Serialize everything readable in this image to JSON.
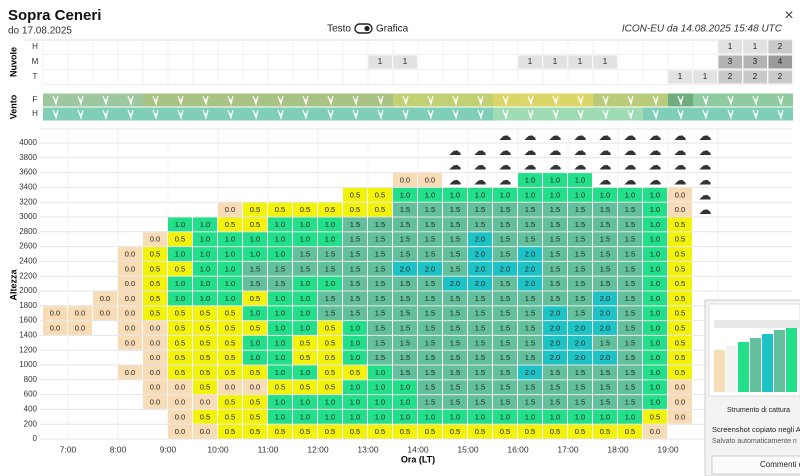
{
  "header": {
    "title": "Sopra Ceneri",
    "subtitle": "do 17.08.2025",
    "toggle_left": "Testo",
    "toggle_right": "Grafica",
    "model": "ICON-EU da 14.08.2025 15:48 UTC",
    "close": "×"
  },
  "clouds": {
    "label": "Nuvole",
    "colors": {
      "1": "#e2e2e2",
      "2": "#c9c9c9",
      "3": "#b4b4b4",
      "4": "#9a9a9a"
    },
    "rows": [
      {
        "name": "H",
        "cells": [
          null,
          null,
          null,
          null,
          null,
          null,
          null,
          null,
          null,
          null,
          null,
          null,
          null,
          null,
          null,
          null,
          null,
          null,
          null,
          null,
          null,
          null,
          null,
          null,
          null,
          null,
          null,
          1,
          1,
          2
        ]
      },
      {
        "name": "M",
        "cells": [
          null,
          null,
          null,
          null,
          null,
          null,
          null,
          null,
          null,
          null,
          null,
          null,
          null,
          1,
          1,
          null,
          null,
          null,
          null,
          1,
          1,
          1,
          1,
          null,
          null,
          null,
          null,
          3,
          3,
          4
        ]
      },
      {
        "name": "T",
        "cells": [
          null,
          null,
          null,
          null,
          null,
          null,
          null,
          null,
          null,
          null,
          null,
          null,
          null,
          null,
          null,
          null,
          null,
          null,
          null,
          null,
          null,
          null,
          null,
          null,
          null,
          1,
          1,
          2,
          2,
          2
        ]
      }
    ]
  },
  "wind": {
    "label": "Vento",
    "rows": [
      {
        "name": "F",
        "colors": [
          "#9dc79f",
          "#9dc79f",
          "#9dc79f",
          "#9dc79f",
          "#a8c383",
          "#a8c383",
          "#a8c383",
          "#a8c383",
          "#a8c383",
          "#a8c383",
          "#a8c383",
          "#a8c383",
          "#a8c383",
          "#a8c383",
          "#c2cf72",
          "#c2cf72",
          "#c2cf72",
          "#c2cf72",
          "#dcd668",
          "#dcd668",
          "#dcd668",
          "#dcd668",
          "#b8cb78",
          "#b8cb78",
          "#b8cb78",
          "#6fae7c",
          "#8fcaa0",
          "#8fcaa0",
          "#8fcaa0",
          "#8fcaa0"
        ]
      },
      {
        "name": "H",
        "colors": [
          "#7fcfb8",
          "#7fcfb8",
          "#7fcfb8",
          "#7fcfb8",
          "#7fcfb8",
          "#7fcfb8",
          "#7fcfb8",
          "#7fcfb8",
          "#7fcfb8",
          "#7fcfb8",
          "#7fcfb8",
          "#7fcfb8",
          "#7fcfb8",
          "#7fcfb8",
          "#7fcfb8",
          "#7fcfb8",
          "#7fcfb8",
          "#7fcfb8",
          "#9fdcb4",
          "#9fdcb4",
          "#9fdcb4",
          "#9fdcb4",
          "#9fdcb4",
          "#9fdcb4",
          "#7fcfb8",
          "#7fcfb8",
          "#7fcfb8",
          "#7fcfb8",
          "#7fcfb8",
          "#7fcfb8"
        ]
      }
    ]
  },
  "grid": {
    "label": "Altezza",
    "xlabel": "Ora (LT)",
    "yticks": [
      0,
      200,
      400,
      600,
      800,
      1000,
      1200,
      1400,
      1600,
      1800,
      2000,
      2200,
      2400,
      2600,
      2800,
      3000,
      3200,
      3400,
      3600,
      3800,
      4000
    ],
    "times": [
      "7:00",
      "8:00",
      "9:00",
      "10:00",
      "11:00",
      "12:00",
      "13:00",
      "14:00",
      "15:00",
      "16:00",
      "17:00",
      "18:00",
      "19:00"
    ],
    "colors": {
      "0.0": "#f8dcb6",
      "0.5": "#f2f20a",
      "1.0": "#22df8a",
      "1.5": "#62c09c",
      "2.0": "#1ec3c6"
    },
    "rows": [
      [
        null,
        null,
        null,
        null,
        null,
        null,
        null,
        null,
        null,
        null,
        null,
        null,
        null,
        null,
        null,
        null,
        null,
        null,
        "☁",
        "☁",
        "☁",
        "☁",
        "☁",
        "☁",
        "☁",
        "☁",
        "☁"
      ],
      [
        null,
        null,
        null,
        null,
        null,
        null,
        null,
        null,
        null,
        null,
        null,
        null,
        null,
        null,
        null,
        null,
        "☁",
        "☁",
        "☁",
        "☁",
        "☁",
        "☁",
        "☁",
        "☁",
        "☁",
        "☁",
        "☁"
      ],
      [
        null,
        null,
        null,
        null,
        null,
        null,
        null,
        null,
        null,
        null,
        null,
        null,
        null,
        null,
        null,
        null,
        "☁",
        "☁",
        "☁",
        "☁",
        "☁",
        "☁",
        "☁",
        "☁",
        "☁",
        "☁",
        "☁"
      ],
      [
        null,
        null,
        null,
        null,
        null,
        null,
        null,
        null,
        null,
        null,
        null,
        null,
        null,
        null,
        "0.0",
        "0.0",
        "☁",
        "☁",
        "☁",
        "1.0",
        "1.0",
        "1.0",
        "☁",
        "☁",
        "☁",
        "☁",
        "☁"
      ],
      [
        null,
        null,
        null,
        null,
        null,
        null,
        null,
        null,
        null,
        null,
        null,
        null,
        "0.5",
        "0.5",
        "1.0",
        "1.0",
        "1.0",
        "1.0",
        "1.0",
        "1.0",
        "1.0",
        "1.0",
        "1.0",
        "1.0",
        "1.0",
        "0.0",
        "☁"
      ],
      [
        null,
        null,
        null,
        null,
        null,
        null,
        null,
        "0.0",
        "0.5",
        "0.5",
        "0.5",
        "0.5",
        "0.5",
        "0.5",
        "1.5",
        "1.5",
        "1.5",
        "1.5",
        "1.5",
        "1.5",
        "1.5",
        "1.5",
        "1.5",
        "1.5",
        "1.0",
        "0.0",
        "☁"
      ],
      [
        null,
        null,
        null,
        null,
        null,
        "1.0",
        "1.0",
        "0.5",
        "0.5",
        "1.0",
        "1.0",
        "1.0",
        "1.5",
        "1.5",
        "1.5",
        "1.5",
        "1.5",
        "1.5",
        "1.5",
        "1.5",
        "1.5",
        "1.5",
        "1.5",
        "1.5",
        "1.0",
        "0.5",
        null
      ],
      [
        null,
        null,
        null,
        null,
        "0.0",
        "0.5",
        "1.0",
        "1.0",
        "1.0",
        "1.0",
        "1.0",
        "1.0",
        "1.5",
        "1.5",
        "1.5",
        "1.5",
        "1.5",
        "2.0",
        "1.5",
        "1.5",
        "1.5",
        "1.5",
        "1.5",
        "1.5",
        "1.0",
        "0.5",
        null
      ],
      [
        null,
        null,
        null,
        "0.0",
        "0.5",
        "1.0",
        "1.0",
        "1.0",
        "1.0",
        "1.0",
        "1.5",
        "1.5",
        "1.5",
        "1.5",
        "1.5",
        "1.5",
        "1.5",
        "2.0",
        "1.5",
        "2.0",
        "1.5",
        "1.5",
        "1.5",
        "1.5",
        "1.0",
        "0.5",
        null
      ],
      [
        null,
        null,
        null,
        "0.0",
        "0.5",
        "0.5",
        "1.0",
        "1.0",
        "1.5",
        "1.5",
        "1.5",
        "1.5",
        "1.5",
        "1.5",
        "2.0",
        "2.0",
        "1.5",
        "2.0",
        "2.0",
        "2.0",
        "1.5",
        "1.5",
        "1.5",
        "1.5",
        "1.0",
        "0.5",
        null
      ],
      [
        null,
        null,
        null,
        "0.0",
        "0.5",
        "1.0",
        "1.0",
        "1.0",
        "1.5",
        "1.5",
        "1.0",
        "1.0",
        "1.5",
        "1.5",
        "1.5",
        "1.5",
        "2.0",
        "2.0",
        "1.5",
        "2.0",
        "1.5",
        "1.5",
        "1.5",
        "1.5",
        "1.0",
        "0.5",
        null
      ],
      [
        null,
        null,
        "0.0",
        "0.0",
        "0.5",
        "1.0",
        "1.0",
        "1.0",
        "0.5",
        "1.0",
        "1.0",
        "1.5",
        "1.5",
        "1.5",
        "1.5",
        "1.5",
        "1.5",
        "1.5",
        "1.5",
        "1.5",
        "1.5",
        "1.5",
        "2.0",
        "1.5",
        "1.0",
        "0.5",
        null
      ],
      [
        "0.0",
        "0.0",
        "0.0",
        "0.0",
        "0.5",
        "0.5",
        "0.5",
        "0.5",
        "1.0",
        "1.0",
        "1.0",
        "1.5",
        "1.5",
        "1.5",
        "1.5",
        "1.5",
        "1.5",
        "1.5",
        "1.5",
        "1.5",
        "2.0",
        "1.5",
        "2.0",
        "1.5",
        "1.0",
        "0.5",
        null
      ],
      [
        "0.0",
        "0.0",
        null,
        "0.0",
        "0.0",
        "0.5",
        "0.5",
        "0.5",
        "0.5",
        "1.0",
        "1.0",
        "0.5",
        "1.0",
        "1.5",
        "1.5",
        "1.5",
        "1.5",
        "1.5",
        "1.5",
        "1.5",
        "2.0",
        "2.0",
        "2.0",
        "1.5",
        "1.0",
        "0.5",
        null
      ],
      [
        null,
        null,
        null,
        "0.0",
        "0.0",
        "0.5",
        "0.5",
        "0.5",
        "1.0",
        "1.0",
        "0.5",
        "0.5",
        "1.0",
        "1.5",
        "1.5",
        "1.5",
        "1.5",
        "1.5",
        "1.5",
        "1.5",
        "2.0",
        "2.0",
        "1.5",
        "1.5",
        "1.0",
        "0.5",
        null
      ],
      [
        null,
        null,
        null,
        null,
        "0.0",
        "0.5",
        "0.5",
        "0.5",
        "1.0",
        "1.0",
        "0.5",
        "0.5",
        "1.0",
        "1.5",
        "1.5",
        "1.5",
        "1.5",
        "1.5",
        "1.5",
        "1.5",
        "2.0",
        "2.0",
        "2.0",
        "1.5",
        "1.0",
        "0.5",
        null
      ],
      [
        null,
        null,
        null,
        "0.0",
        "0.0",
        "0.5",
        "0.5",
        "0.5",
        "0.5",
        "1.0",
        "1.0",
        "0.5",
        "0.5",
        "1.0",
        "1.5",
        "1.5",
        "1.5",
        "1.5",
        "1.5",
        "2.0",
        "1.5",
        "1.5",
        "1.5",
        "1.5",
        "1.0",
        "0.5",
        null
      ],
      [
        null,
        null,
        null,
        null,
        "0.0",
        "0.0",
        "0.5",
        "0.0",
        "0.0",
        "0.5",
        "0.5",
        "0.5",
        "1.0",
        "1.0",
        "1.0",
        "1.5",
        "1.5",
        "1.5",
        "1.5",
        "1.5",
        "1.5",
        "1.5",
        "1.5",
        "1.5",
        "1.0",
        "0.0",
        null
      ],
      [
        null,
        null,
        null,
        null,
        "0.0",
        "0.0",
        "0.0",
        "0.5",
        "0.5",
        "1.0",
        "1.0",
        "1.0",
        "1.0",
        "1.0",
        "1.0",
        "1.5",
        "1.5",
        "1.5",
        "1.5",
        "1.5",
        "1.5",
        "1.5",
        "1.5",
        "1.5",
        "1.0",
        "0.0",
        null
      ],
      [
        null,
        null,
        null,
        null,
        null,
        "0.0",
        "0.5",
        "0.5",
        "0.5",
        "1.0",
        "1.0",
        "1.0",
        "1.0",
        "1.0",
        "1.0",
        "1.0",
        "1.0",
        "1.0",
        "1.0",
        "1.0",
        "1.0",
        "1.0",
        "1.0",
        "1.0",
        "0.5",
        "0.0",
        null
      ],
      [
        null,
        null,
        null,
        null,
        null,
        "0.0",
        "0.0",
        "0.5",
        "0.5",
        "0.5",
        "0.5",
        "0.5",
        "0.5",
        "0.5",
        "0.5",
        "0.5",
        "0.5",
        "0.5",
        "0.5",
        "0.5",
        "0.5",
        "0.5",
        "0.5",
        "0.5",
        "0.0",
        null,
        null
      ]
    ]
  },
  "popup": {
    "app": "Strumento di cattura",
    "line1": "Screenshot copiato negli A",
    "line2": "Salvato automaticamente n",
    "button": "Commenti e"
  }
}
